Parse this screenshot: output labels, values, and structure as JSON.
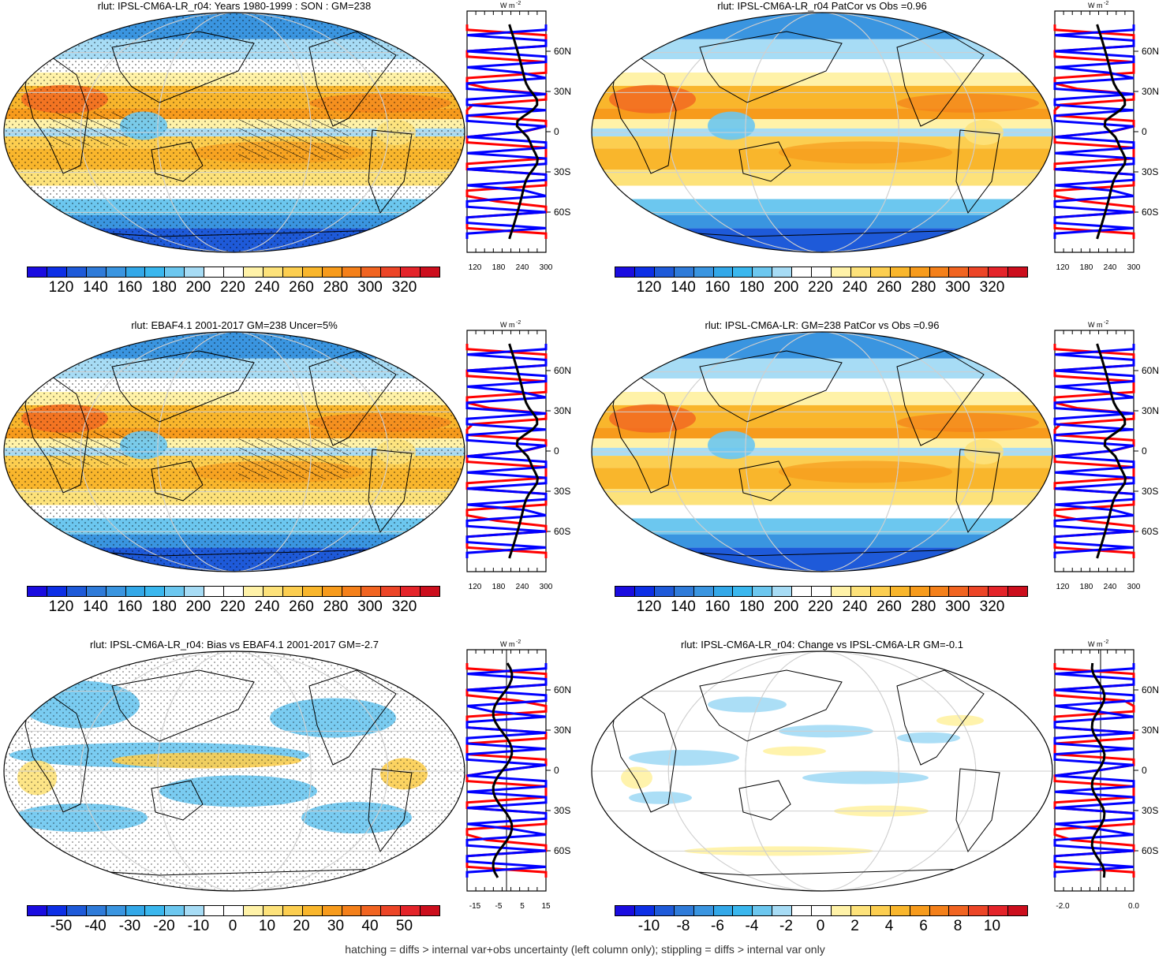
{
  "colors": {
    "abs_palette": [
      "#1a0ce0",
      "#0d2fe6",
      "#1e5ad9",
      "#2f7bd9",
      "#3a95e0",
      "#33a8e8",
      "#3ab7ee",
      "#6cc7ef",
      "#a7dcf5",
      "#ffffff",
      "#ffffff",
      "#fff2a8",
      "#fde27a",
      "#fcce50",
      "#f9b62c",
      "#f79b1c",
      "#f4801a",
      "#f16421",
      "#ec4527",
      "#e4242a",
      "#cc0e1d"
    ],
    "bias_palette": [
      "#1a0ce0",
      "#0d2fe6",
      "#1e5ad9",
      "#2f7bd9",
      "#3a95e0",
      "#33a8e8",
      "#3ab7ee",
      "#6cc7ef",
      "#a7dcf5",
      "#ffffff",
      "#ffffff",
      "#fff2a8",
      "#fde27a",
      "#fcce50",
      "#f9b62c",
      "#f79b1c",
      "#f4801a",
      "#f16421",
      "#ec4527",
      "#e4242a",
      "#cc0e1d"
    ],
    "model_line": "#0000ff",
    "obs_line": "#ff0000",
    "mean_line": "#000000"
  },
  "panels": [
    {
      "title": "rlut: IPSL-CM6A-LR_r04: Years 1980-1999 : SON : GM=238",
      "colorbar_labels": [
        "120",
        "140",
        "160",
        "180",
        "200",
        "220",
        "240",
        "260",
        "280",
        "300",
        "320"
      ],
      "profile_xticks": [
        "120",
        "180",
        "240",
        "300"
      ],
      "profile_yticks": [
        "60N",
        "30N",
        "0",
        "30S",
        "60S"
      ],
      "profile_unit": "W m",
      "profile_unit_sup": "-2"
    },
    {
      "title": "rlut: IPSL-CM6A-LR_r04 PatCor vs Obs =0.96",
      "colorbar_labels": [
        "120",
        "140",
        "160",
        "180",
        "200",
        "220",
        "240",
        "260",
        "280",
        "300",
        "320"
      ],
      "profile_xticks": [
        "120",
        "180",
        "240",
        "300"
      ],
      "profile_yticks": [
        "60N",
        "30N",
        "0",
        "30S",
        "60S"
      ],
      "profile_unit": "W m",
      "profile_unit_sup": "-2"
    },
    {
      "title": "rlut: EBAF4.1 2001-2017 GM=238 Uncer=5%",
      "colorbar_labels": [
        "120",
        "140",
        "160",
        "180",
        "200",
        "220",
        "240",
        "260",
        "280",
        "300",
        "320"
      ],
      "profile_xticks": [
        "120",
        "180",
        "240",
        "300"
      ],
      "profile_yticks": [
        "60N",
        "30N",
        "0",
        "30S",
        "60S"
      ],
      "profile_unit": "W m",
      "profile_unit_sup": "-2"
    },
    {
      "title": "rlut: IPSL-CM6A-LR: GM=238 PatCor vs Obs =0.96",
      "colorbar_labels": [
        "120",
        "140",
        "160",
        "180",
        "200",
        "220",
        "240",
        "260",
        "280",
        "300",
        "320"
      ],
      "profile_xticks": [
        "120",
        "180",
        "240",
        "300"
      ],
      "profile_yticks": [
        "60N",
        "30N",
        "0",
        "30S",
        "60S"
      ],
      "profile_unit": "W m",
      "profile_unit_sup": "-2"
    },
    {
      "title": "rlut: IPSL-CM6A-LR_r04: Bias vs EBAF4.1 2001-2017  GM=-2.7",
      "colorbar_labels": [
        "-50",
        "-40",
        "-30",
        "-20",
        "-10",
        "0",
        "10",
        "20",
        "30",
        "40",
        "50"
      ],
      "profile_xticks": [
        "-15",
        "-5",
        "5",
        "15"
      ],
      "profile_yticks": [
        "60N",
        "30N",
        "0",
        "30S",
        "60S"
      ],
      "profile_unit": "W m",
      "profile_unit_sup": "-2"
    },
    {
      "title": "rlut: IPSL-CM6A-LR_r04: Change vs IPSL-CM6A-LR GM=-0.1",
      "colorbar_labels": [
        "-10",
        "-8",
        "-6",
        "-4",
        "-2",
        "0",
        "2",
        "4",
        "6",
        "8",
        "10"
      ],
      "profile_xticks": [
        "-2.0",
        "0.0"
      ],
      "profile_yticks": [
        "60N",
        "30N",
        "0",
        "30S",
        "60S"
      ],
      "profile_unit": "W m",
      "profile_unit_sup": "-2"
    }
  ],
  "footer": "hatching = diffs > internal var+obs uncertainty (left column only); stippling = diffs > internal var only"
}
